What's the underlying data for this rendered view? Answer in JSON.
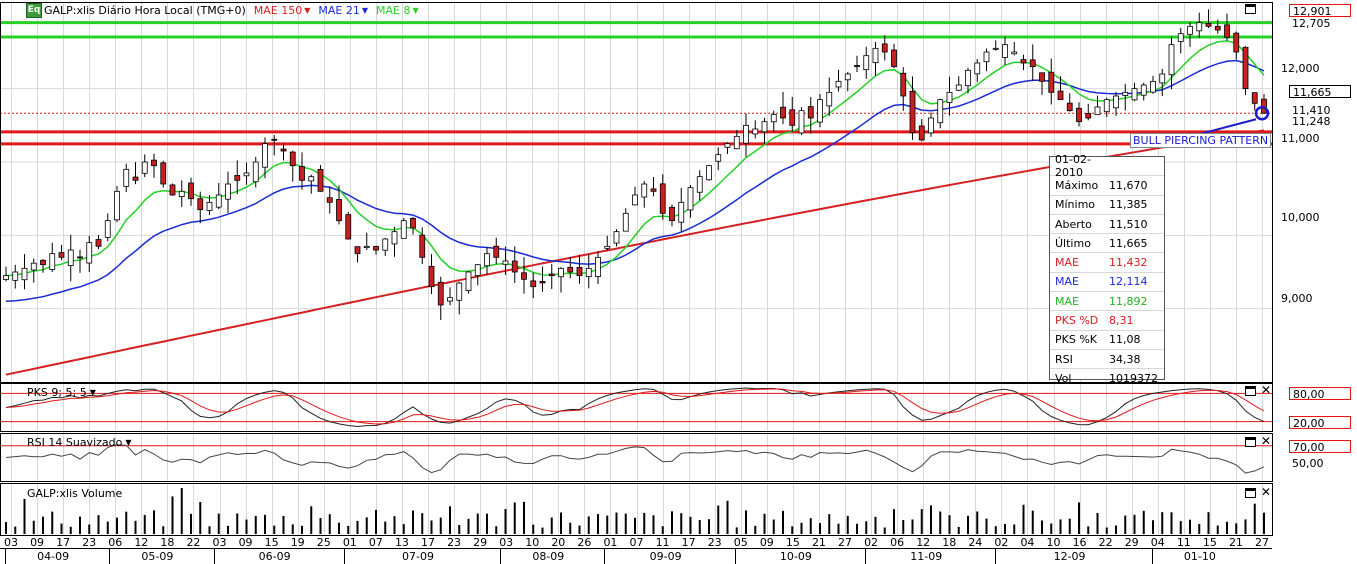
{
  "header": {
    "icon_text": "Eq",
    "title": "GALP:xlis Diário Hora Local (TMG+0)",
    "mae1": {
      "label": "MAE 150",
      "color": "#d42020"
    },
    "mae2": {
      "label": "MAE 21",
      "color": "#1a2ad4"
    },
    "mae3": {
      "label": "MAE 8",
      "color": "#26d026"
    }
  },
  "price_labels": {
    "resistance_1": "12,901",
    "resistance_2": "12,705",
    "last": "11,665",
    "support_1": "11,410",
    "support_2": "11,248"
  },
  "annotation": {
    "text": "BULL PIERCING PATTERN",
    "color": "#1b1bd0"
  },
  "info_box": {
    "date": "01-02-2010",
    "rows": [
      {
        "key": "Máximo",
        "value": "11,670",
        "color": "#000000"
      },
      {
        "key": "Mínimo",
        "value": "11,385",
        "color": "#000000"
      },
      {
        "key": "Aberto",
        "value": "11,510",
        "color": "#000000"
      },
      {
        "key": "Último",
        "value": "11,665",
        "color": "#000000"
      },
      {
        "key": "MAE",
        "value": "11,432",
        "color": "#d42020"
      },
      {
        "key": "MAE",
        "value": "12,114",
        "color": "#1a2ad4"
      },
      {
        "key": "MAE",
        "value": "11,892",
        "color": "#26b026"
      },
      {
        "key": "PKS %D",
        "value": "8,31",
        "color": "#d42020"
      },
      {
        "key": "PKS %K",
        "value": "11,08",
        "color": "#000000"
      },
      {
        "key": "RSI",
        "value": "34,38",
        "color": "#000000"
      },
      {
        "key": "Vol",
        "value": "1019372",
        "color": "#000000"
      }
    ]
  },
  "panels": {
    "stochastic": {
      "title": "PKS 9; 5; 5",
      "upper": "80,00",
      "lower": "20,00"
    },
    "rsi": {
      "title": "RSI 14 Suavizado",
      "upper": "70,00",
      "mid": "50,00"
    },
    "volume": {
      "title": "GALP:xlis Volume"
    }
  },
  "chart_data": {
    "type": "candlestick",
    "price_axis": {
      "ticks": [
        9,
        10,
        11,
        12
      ],
      "tick_labels": [
        "9,000",
        "10,000",
        "11,000",
        "12,000"
      ],
      "ylim": [
        8.0,
        13.1
      ]
    },
    "x_day_ticks": [
      "03",
      "09",
      "17",
      "23",
      "06",
      "12",
      "18",
      "22",
      "03",
      "09",
      "15",
      "19",
      "25",
      "01",
      "07",
      "13",
      "17",
      "23",
      "29",
      "03",
      "10",
      "20",
      "26",
      "01",
      "07",
      "11",
      "17",
      "23",
      "05",
      "09",
      "15",
      "21",
      "27",
      "02",
      "06",
      "12",
      "18",
      "24",
      "02",
      "04",
      "10",
      "16",
      "22",
      "29",
      "04",
      "11",
      "15",
      "21",
      "27"
    ],
    "x_month_labels": [
      "04-09",
      "05-09",
      "06-09",
      "07-09",
      "08-09",
      "09-09",
      "10-09",
      "11-09",
      "12-09",
      "01-10"
    ],
    "month_label_positions": [
      0,
      4,
      8,
      13,
      19,
      23,
      28,
      33,
      38,
      44
    ],
    "close": [
      9.45,
      9.5,
      9.55,
      9.62,
      9.6,
      9.75,
      9.7,
      9.8,
      9.7,
      9.9,
      9.85,
      10.2,
      10.6,
      10.9,
      10.75,
      11.0,
      10.95,
      10.7,
      10.55,
      10.6,
      10.5,
      10.35,
      10.45,
      10.55,
      10.7,
      10.75,
      10.85,
      11.0,
      11.25,
      11.3,
      11.15,
      10.95,
      10.75,
      10.8,
      10.6,
      10.45,
      10.2,
      9.95,
      9.75,
      9.85,
      9.8,
      9.95,
      10.05,
      10.2,
      10.1,
      9.7,
      9.3,
      9.05,
      9.15,
      9.35,
      9.5,
      9.6,
      9.75,
      9.7,
      9.65,
      9.5,
      9.4,
      9.3,
      9.35,
      9.45,
      9.55,
      9.5,
      9.45,
      9.55,
      9.7,
      9.85,
      10.05,
      10.3,
      10.55,
      10.7,
      10.6,
      10.3,
      10.2,
      10.45,
      10.65,
      10.8,
      10.95,
      11.1,
      11.25,
      11.35,
      11.5,
      11.45,
      11.55,
      11.65,
      11.6,
      11.5,
      11.7,
      11.6,
      11.85,
      11.95,
      12.1,
      12.2,
      12.3,
      12.45,
      12.55,
      12.5,
      12.3,
      11.9,
      11.4,
      11.3,
      11.6,
      11.85,
      11.95,
      12.05,
      12.25,
      12.35,
      12.5,
      12.55,
      12.6,
      12.5,
      12.35,
      12.3,
      12.1,
      11.95,
      11.85,
      11.7,
      11.55,
      11.6,
      11.75,
      11.85,
      11.9,
      11.95,
      12.0,
      12.05,
      12.1,
      12.2,
      12.6,
      12.75,
      12.85,
      12.9,
      12.85,
      12.8,
      12.7,
      12.5,
      12.0,
      11.8,
      11.665
    ],
    "mae_150": {
      "name": "MAE 150",
      "start": 8.1,
      "end": 11.432
    },
    "mae_21": {
      "name": "MAE 21",
      "last": 12.114
    },
    "mae_8": {
      "name": "MAE 8",
      "last": 11.892
    },
    "horizontal_lines": [
      {
        "value": 12.901,
        "color": "#26d026"
      },
      {
        "value": 12.705,
        "color": "#26d026"
      },
      {
        "value": 11.41,
        "color": "#e01818"
      },
      {
        "value": 11.248,
        "color": "#e01818"
      }
    ],
    "volume_peak_index": 19
  }
}
